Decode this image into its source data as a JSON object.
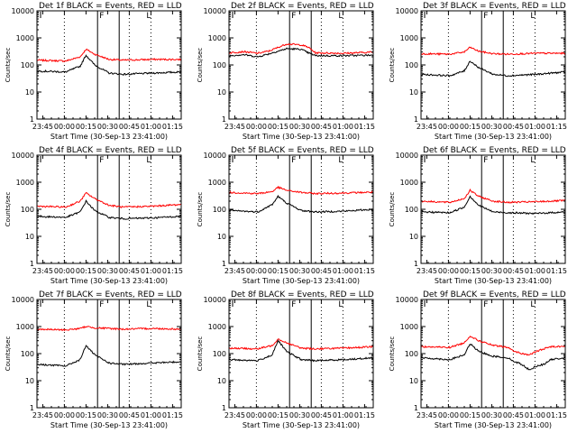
{
  "figure": {
    "xlabel": "Start Time (30-Sep-13 23:41:00)",
    "ylabel": "Counts/sec"
  },
  "axes": {
    "y_scale": "log",
    "ylim": [
      1,
      10000
    ],
    "y_ticks": [
      1,
      10,
      100,
      1000,
      10000
    ],
    "y_tick_labels": [
      "1",
      "10",
      "100",
      "1000",
      "10000"
    ],
    "x_tick_labels": [
      "23:45",
      "00:00",
      "00:15",
      "00:30",
      "00:45",
      "01:00",
      "01:15"
    ],
    "x_tick_minutes": [
      4,
      19,
      34,
      49,
      64,
      79,
      94
    ],
    "x_range_minutes": [
      0,
      100
    ],
    "dotted_gridlines_at": [
      "00:00",
      "00:45",
      "01:00"
    ],
    "interval_lines_at": [
      "00:23",
      "00:38"
    ],
    "marker_labels": [
      "F",
      "L"
    ]
  },
  "colors": {
    "events": "#000000",
    "lld": "#ff0000"
  },
  "chart_data": [
    {
      "type": "line",
      "title": "Det 1f BLACK = Events, RED = LLD",
      "x_unit": "minutes after 23:41:00",
      "y_scale": "log",
      "x": [
        0,
        20,
        30,
        34,
        40,
        50,
        60,
        80,
        100
      ],
      "series": [
        {
          "name": "Events",
          "color": "#000000",
          "values": [
            60,
            55,
            90,
            230,
            100,
            50,
            45,
            50,
            55
          ]
        },
        {
          "name": "LLD",
          "color": "#ff0000",
          "values": [
            150,
            140,
            200,
            380,
            250,
            160,
            150,
            160,
            160
          ]
        }
      ]
    },
    {
      "type": "line",
      "title": "Det 2f BLACK = Events, RED = LLD",
      "x_unit": "minutes after 23:41:00",
      "y_scale": "log",
      "x": [
        0,
        10,
        20,
        28,
        40,
        50,
        55,
        60,
        80,
        100
      ],
      "series": [
        {
          "name": "Events",
          "color": "#000000",
          "values": [
            220,
            240,
            200,
            260,
            400,
            380,
            280,
            220,
            220,
            230
          ]
        },
        {
          "name": "LLD",
          "color": "#ff0000",
          "values": [
            280,
            310,
            270,
            330,
            600,
            550,
            450,
            280,
            270,
            300
          ]
        }
      ]
    },
    {
      "type": "line",
      "title": "Det 3f BLACK = Events, RED = LLD",
      "x_unit": "minutes after 23:41:00",
      "y_scale": "log",
      "x": [
        0,
        20,
        30,
        34,
        40,
        50,
        60,
        80,
        100
      ],
      "series": [
        {
          "name": "Events",
          "color": "#000000",
          "values": [
            45,
            40,
            60,
            140,
            80,
            45,
            40,
            45,
            55
          ]
        },
        {
          "name": "LLD",
          "color": "#ff0000",
          "values": [
            260,
            250,
            300,
            450,
            320,
            260,
            250,
            270,
            270
          ]
        }
      ]
    },
    {
      "type": "line",
      "title": "Det 4f BLACK = Events, RED = LLD",
      "x_unit": "minutes after 23:41:00",
      "y_scale": "log",
      "x": [
        0,
        20,
        30,
        34,
        40,
        50,
        60,
        80,
        100
      ],
      "series": [
        {
          "name": "Events",
          "color": "#000000",
          "values": [
            55,
            50,
            80,
            200,
            90,
            50,
            45,
            48,
            55
          ]
        },
        {
          "name": "LLD",
          "color": "#ff0000",
          "values": [
            130,
            120,
            200,
            400,
            250,
            140,
            120,
            130,
            150
          ]
        }
      ]
    },
    {
      "type": "line",
      "title": "Det 5f BLACK = Events, RED = LLD",
      "x_unit": "minutes after 23:41:00",
      "y_scale": "log",
      "x": [
        0,
        20,
        30,
        34,
        40,
        50,
        60,
        80,
        100
      ],
      "series": [
        {
          "name": "Events",
          "color": "#000000",
          "values": [
            90,
            80,
            150,
            300,
            170,
            90,
            80,
            85,
            100
          ]
        },
        {
          "name": "LLD",
          "color": "#ff0000",
          "values": [
            420,
            380,
            450,
            650,
            500,
            420,
            380,
            400,
            430
          ]
        }
      ]
    },
    {
      "type": "line",
      "title": "Det 6f BLACK = Events, RED = LLD",
      "x_unit": "minutes after 23:41:00",
      "y_scale": "log",
      "x": [
        0,
        20,
        30,
        34,
        40,
        50,
        60,
        80,
        100
      ],
      "series": [
        {
          "name": "Events",
          "color": "#000000",
          "values": [
            80,
            75,
            120,
            300,
            140,
            80,
            75,
            70,
            80
          ]
        },
        {
          "name": "LLD",
          "color": "#ff0000",
          "values": [
            200,
            180,
            250,
            500,
            300,
            200,
            180,
            190,
            210
          ]
        }
      ]
    },
    {
      "type": "line",
      "title": "Det 7f BLACK = Events, RED = LLD",
      "x_unit": "minutes after 23:41:00",
      "y_scale": "log",
      "x": [
        0,
        20,
        30,
        34,
        40,
        50,
        60,
        80,
        100
      ],
      "series": [
        {
          "name": "Events",
          "color": "#000000",
          "values": [
            40,
            35,
            60,
            200,
            90,
            45,
            40,
            45,
            50
          ]
        },
        {
          "name": "LLD",
          "color": "#ff0000",
          "values": [
            800,
            750,
            850,
            1000,
            900,
            850,
            800,
            850,
            800
          ]
        }
      ]
    },
    {
      "type": "line",
      "title": "Det 8f BLACK = Events, RED = LLD",
      "x_unit": "minutes after 23:41:00",
      "y_scale": "log",
      "x": [
        0,
        20,
        30,
        34,
        40,
        50,
        60,
        80,
        100
      ],
      "series": [
        {
          "name": "Events",
          "color": "#000000",
          "values": [
            60,
            55,
            90,
            300,
            120,
            60,
            55,
            60,
            70
          ]
        },
        {
          "name": "LLD",
          "color": "#ff0000",
          "values": [
            160,
            150,
            200,
            350,
            250,
            160,
            150,
            160,
            180
          ]
        }
      ]
    },
    {
      "type": "line",
      "title": "Det 9f BLACK = Events, RED = LLD",
      "x_unit": "minutes after 23:41:00",
      "y_scale": "log",
      "x": [
        0,
        20,
        30,
        34,
        40,
        50,
        60,
        65,
        70,
        75,
        80,
        85,
        90,
        100
      ],
      "series": [
        {
          "name": "Events",
          "color": "#000000",
          "values": [
            70,
            60,
            90,
            230,
            120,
            80,
            70,
            50,
            40,
            25,
            35,
            40,
            60,
            70
          ]
        },
        {
          "name": "LLD",
          "color": "#ff0000",
          "values": [
            180,
            170,
            250,
            450,
            300,
            200,
            170,
            120,
            100,
            90,
            120,
            150,
            180,
            190
          ]
        }
      ]
    }
  ]
}
